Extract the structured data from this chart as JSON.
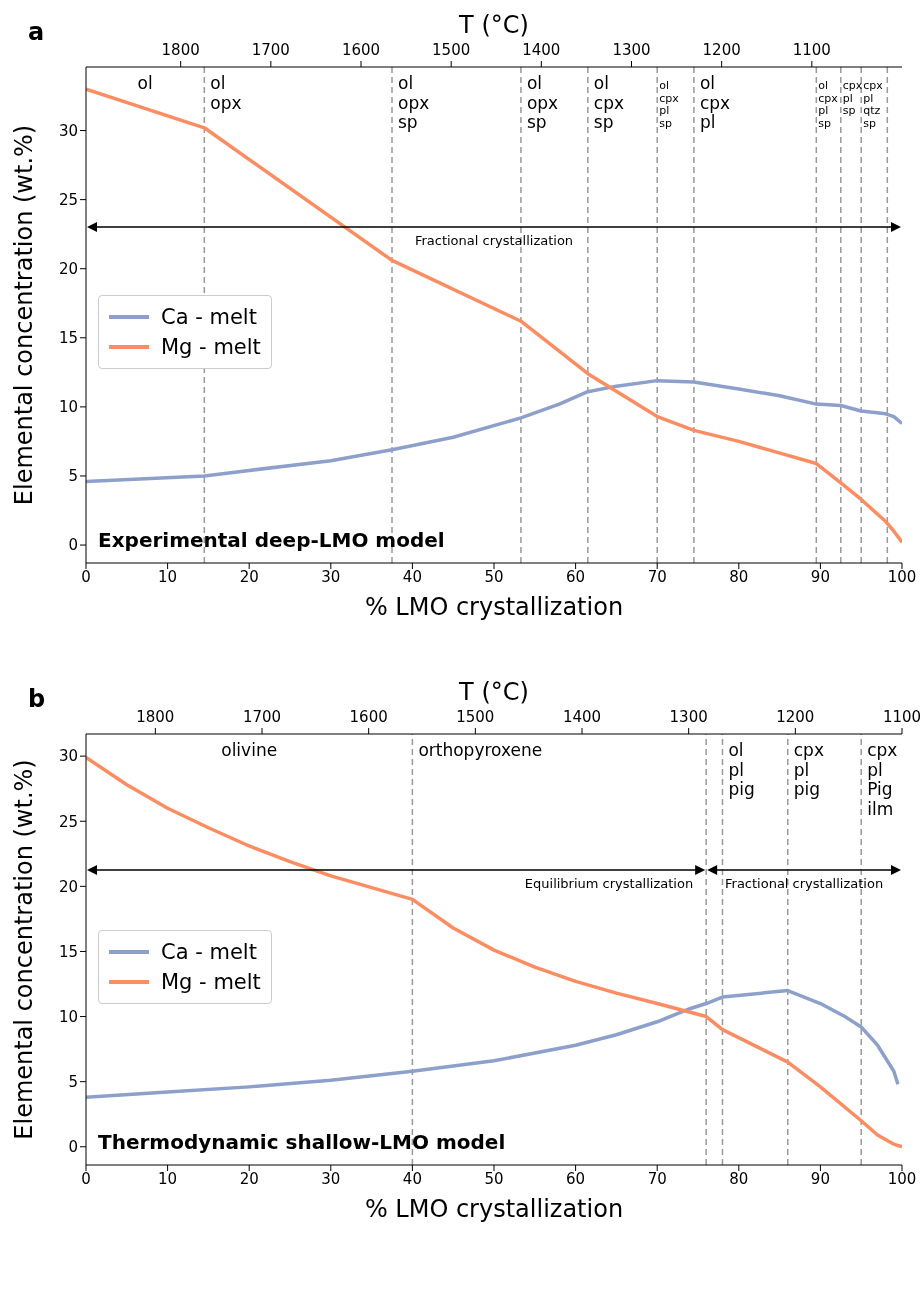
{
  "chart_data": [
    {
      "type": "line",
      "title": "a",
      "xlabel": "% LMO crystallization",
      "ylabel": "Elemental concentration (wt.%)",
      "x2label": "T (°C)",
      "xlim": [
        0,
        100
      ],
      "xticks": [
        0,
        10,
        20,
        30,
        40,
        50,
        60,
        70,
        80,
        90,
        100
      ],
      "x2lim": [
        1905,
        1000
      ],
      "x2ticks": [
        1800,
        1700,
        1600,
        1500,
        1400,
        1300,
        1200,
        1100
      ],
      "ylim": [
        -1.3,
        34.6
      ],
      "yticks": [
        0,
        5,
        10,
        15,
        20,
        25,
        30
      ],
      "legend": "left",
      "series": [
        {
          "name": "Ca - melt",
          "color": "#8da0cb",
          "x": [
            0,
            14.5,
            20,
            30,
            37.5,
            45,
            53.3,
            58,
            61.5,
            65,
            70,
            74.5,
            80,
            85,
            89.5,
            92.5,
            95,
            98,
            99,
            100
          ],
          "values": [
            4.6,
            5.0,
            5.4,
            6.1,
            6.9,
            7.8,
            9.2,
            10.2,
            11.1,
            11.5,
            11.9,
            11.8,
            11.3,
            10.8,
            10.2,
            10.1,
            9.7,
            9.5,
            9.3,
            8.8
          ]
        },
        {
          "name": "Mg - melt",
          "color": "#fc8d62",
          "x": [
            0,
            14.5,
            37.5,
            53.3,
            61.5,
            70,
            74.5,
            80,
            89.5,
            92.5,
            95,
            98,
            99,
            100
          ],
          "values": [
            33.0,
            30.2,
            20.6,
            16.2,
            12.4,
            9.3,
            8.3,
            7.5,
            5.9,
            4.5,
            3.3,
            1.7,
            1.0,
            0.2
          ]
        }
      ],
      "ref_lines": [
        {
          "axis": "x",
          "value": 14.5,
          "label": "ol\nopx",
          "color": "#999999",
          "line_style": "dashed"
        },
        {
          "axis": "x",
          "value": 37.5,
          "label": "ol\nopx\nsp",
          "color": "#999999",
          "line_style": "dashed"
        },
        {
          "axis": "x",
          "value": 53.3,
          "label": "ol\nopx\nsp",
          "color": "#999999",
          "line_style": "dashed"
        },
        {
          "axis": "x",
          "value": 61.5,
          "label": "ol\ncpx\nsp",
          "color": "#999999",
          "line_style": "dashed"
        },
        {
          "axis": "x",
          "value": 70,
          "label": "ol\ncpx\npl\nsp",
          "color": "#999999",
          "line_style": "dashed"
        },
        {
          "axis": "x",
          "value": 74.5,
          "label": "ol\ncpx\npl",
          "color": "#999999",
          "line_style": "dashed"
        },
        {
          "axis": "x",
          "value": 89.5,
          "label": "ol\ncpx\npl\nsp",
          "color": "#999999",
          "line_style": "dashed"
        },
        {
          "axis": "x",
          "value": 92.5,
          "label": "cpx\npl\nsp",
          "color": "#999999",
          "line_style": "dashed"
        },
        {
          "axis": "x",
          "value": 95,
          "label": "cpx\npl\nqtz\nsp",
          "color": "#999999",
          "line_style": "dashed"
        },
        {
          "axis": "x",
          "value": 98.2,
          "color": "#999999",
          "line_style": "dashed"
        }
      ],
      "annotations": [
        "ol",
        "Experimental deep-LMO model",
        "Fractional crystallization"
      ]
    },
    {
      "type": "line",
      "title": "b",
      "xlabel": "% LMO crystallization",
      "ylabel": "Elemental concentration (wt.%)",
      "x2label": "T (°C)",
      "xlim": [
        0,
        100
      ],
      "xticks": [
        0,
        10,
        20,
        30,
        40,
        50,
        60,
        70,
        80,
        90,
        100
      ],
      "x2lim": [
        1865,
        1100
      ],
      "x2ticks": [
        1800,
        1700,
        1600,
        1500,
        1400,
        1300,
        1200,
        1100
      ],
      "ylim": [
        -1.4,
        31.7
      ],
      "yticks": [
        0,
        5,
        10,
        15,
        20,
        25,
        30
      ],
      "legend": "left",
      "series": [
        {
          "name": "Ca - melt",
          "color": "#8da0cb",
          "x": [
            0,
            10,
            20,
            30,
            40,
            50,
            60,
            65,
            70,
            74,
            76,
            78,
            86,
            90,
            93,
            95,
            97,
            99,
            99.5
          ],
          "values": [
            3.8,
            4.2,
            4.6,
            5.1,
            5.8,
            6.6,
            7.8,
            8.6,
            9.6,
            10.6,
            11.0,
            11.5,
            12.0,
            11.0,
            10.0,
            9.2,
            7.8,
            5.8,
            4.8
          ]
        },
        {
          "name": "Mg - melt",
          "color": "#fc8d62",
          "x": [
            0,
            5,
            10,
            15,
            20,
            25,
            30,
            35,
            40,
            45,
            50,
            55,
            60,
            65,
            70,
            76,
            78,
            86,
            90,
            95,
            97,
            99,
            100
          ],
          "values": [
            29.9,
            27.8,
            26.0,
            24.5,
            23.1,
            21.9,
            20.8,
            19.9,
            19.0,
            16.8,
            15.1,
            13.8,
            12.7,
            11.8,
            11.0,
            10.0,
            9.0,
            6.5,
            4.6,
            2.0,
            0.9,
            0.2,
            0.0
          ]
        }
      ],
      "ref_lines": [
        {
          "axis": "x",
          "value": 40,
          "label": "orthopyroxene",
          "color": "#999999",
          "line_style": "dashed"
        },
        {
          "axis": "x",
          "value": 76,
          "color": "#999999",
          "line_style": "dashed"
        },
        {
          "axis": "x",
          "value": 78,
          "label": "ol\npl\npig",
          "color": "#999999",
          "line_style": "dashed"
        },
        {
          "axis": "x",
          "value": 86,
          "label": "cpx\npl\npig",
          "color": "#999999",
          "line_style": "dashed"
        },
        {
          "axis": "x",
          "value": 95,
          "label": "cpx\npl\nPig\nilm",
          "color": "#999999",
          "line_style": "dashed"
        }
      ],
      "annotations": [
        "olivine",
        "Thermodynamic shallow-LMO model",
        "Equilibrium crystallization",
        "Fractional crystallization"
      ]
    }
  ]
}
